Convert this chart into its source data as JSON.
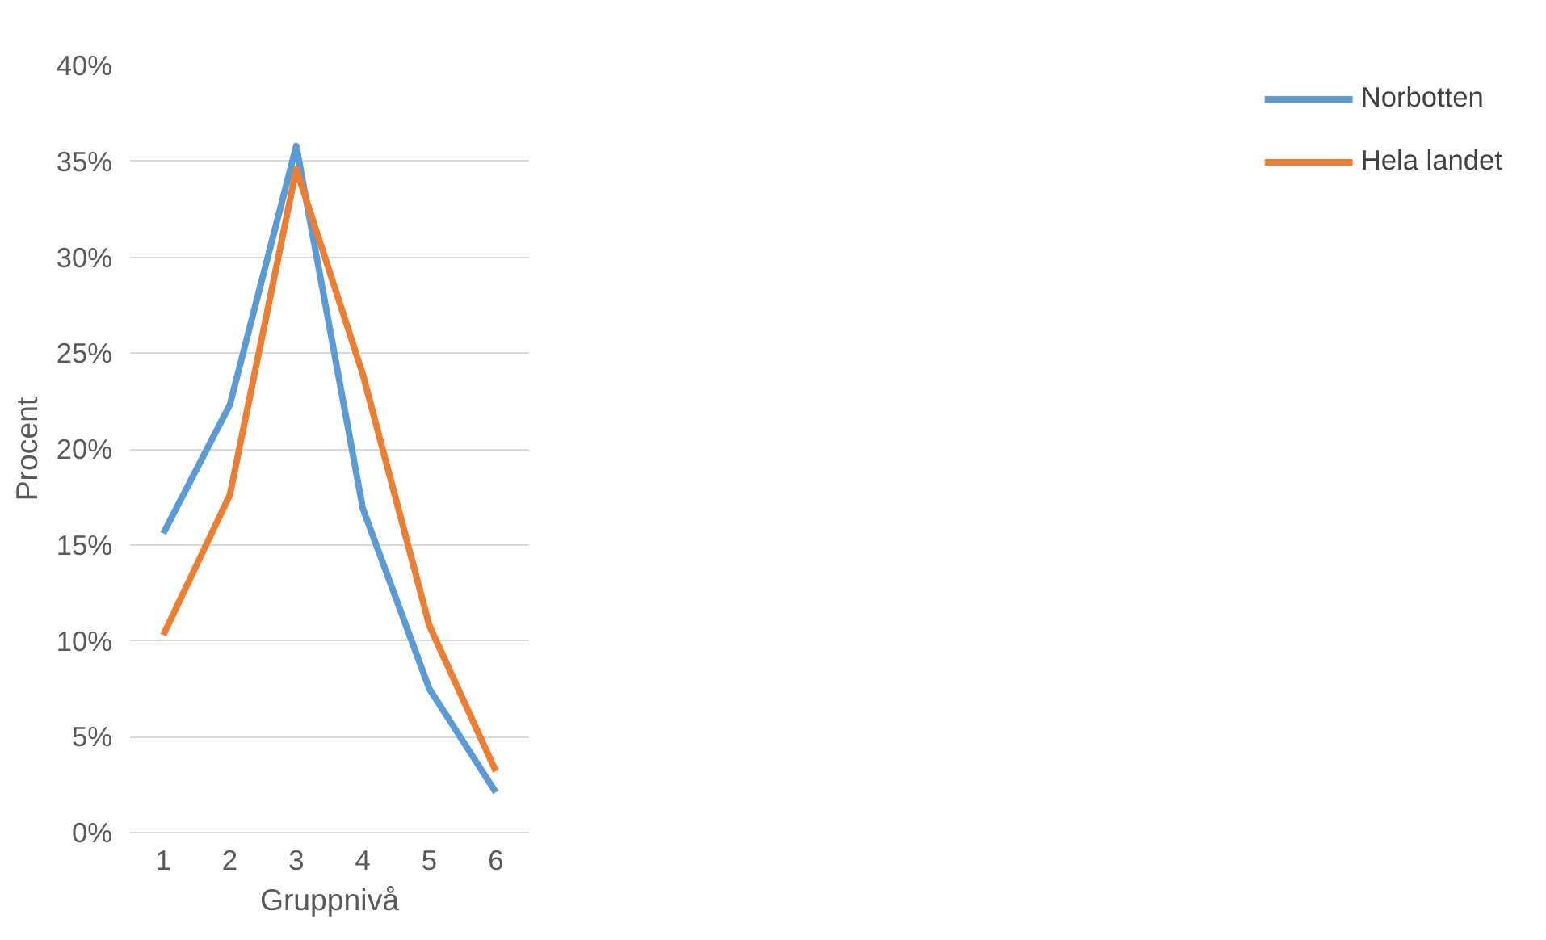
{
  "chart_data": {
    "type": "line",
    "xlabel": "Gruppnivå",
    "ylabel": "Procent",
    "categories": [
      "1",
      "2",
      "3",
      "4",
      "5",
      "6"
    ],
    "series": [
      {
        "name": "Norbotten",
        "color": "#5b9bd5",
        "values": [
          15.6,
          22.3,
          35.8,
          16.9,
          7.5,
          2.1
        ]
      },
      {
        "name": "Hela landet",
        "color": "#ed7d31",
        "values": [
          10.3,
          17.6,
          34.6,
          23.9,
          10.8,
          3.2
        ]
      }
    ],
    "ylim": [
      0,
      40
    ],
    "yticks": [
      {
        "value": 0,
        "label": "0%"
      },
      {
        "value": 5,
        "label": "5%"
      },
      {
        "value": 10,
        "label": "10%"
      },
      {
        "value": 15,
        "label": "15%"
      },
      {
        "value": 20,
        "label": "20%"
      },
      {
        "value": 25,
        "label": "25%"
      },
      {
        "value": 30,
        "label": "30%"
      },
      {
        "value": 35,
        "label": "35%"
      },
      {
        "value": 40,
        "label": "40%"
      }
    ],
    "grid": "y",
    "legend": "right",
    "marker": "none",
    "line_style": "solid"
  }
}
